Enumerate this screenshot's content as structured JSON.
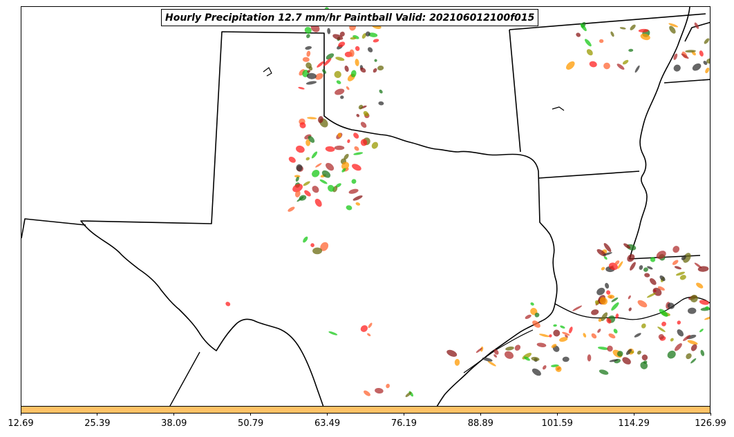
{
  "title": "Hourly Precipitation 12.7 mm/hr Paintball Valid: 202106012100f015",
  "colors": {
    "border": "#000000",
    "colorbar_fill": "#ffc266",
    "member_palette": [
      "#ff2020",
      "#18c818",
      "#ff9900",
      "#8b1a1a",
      "#9a9a00",
      "#333333",
      "#1e7a1e",
      "#b03030",
      "#6b6b10",
      "#ff6633"
    ]
  },
  "colorbar": {
    "ticks": [
      "12.69",
      "25.39",
      "38.09",
      "50.79",
      "63.49",
      "76.19",
      "88.89",
      "101.59",
      "114.29",
      "126.99"
    ]
  },
  "map": {
    "region": "Texas and surrounding southern-central US",
    "features": [
      "state-borders",
      "gulf-coastline",
      "precipitation-paintballs"
    ]
  }
}
